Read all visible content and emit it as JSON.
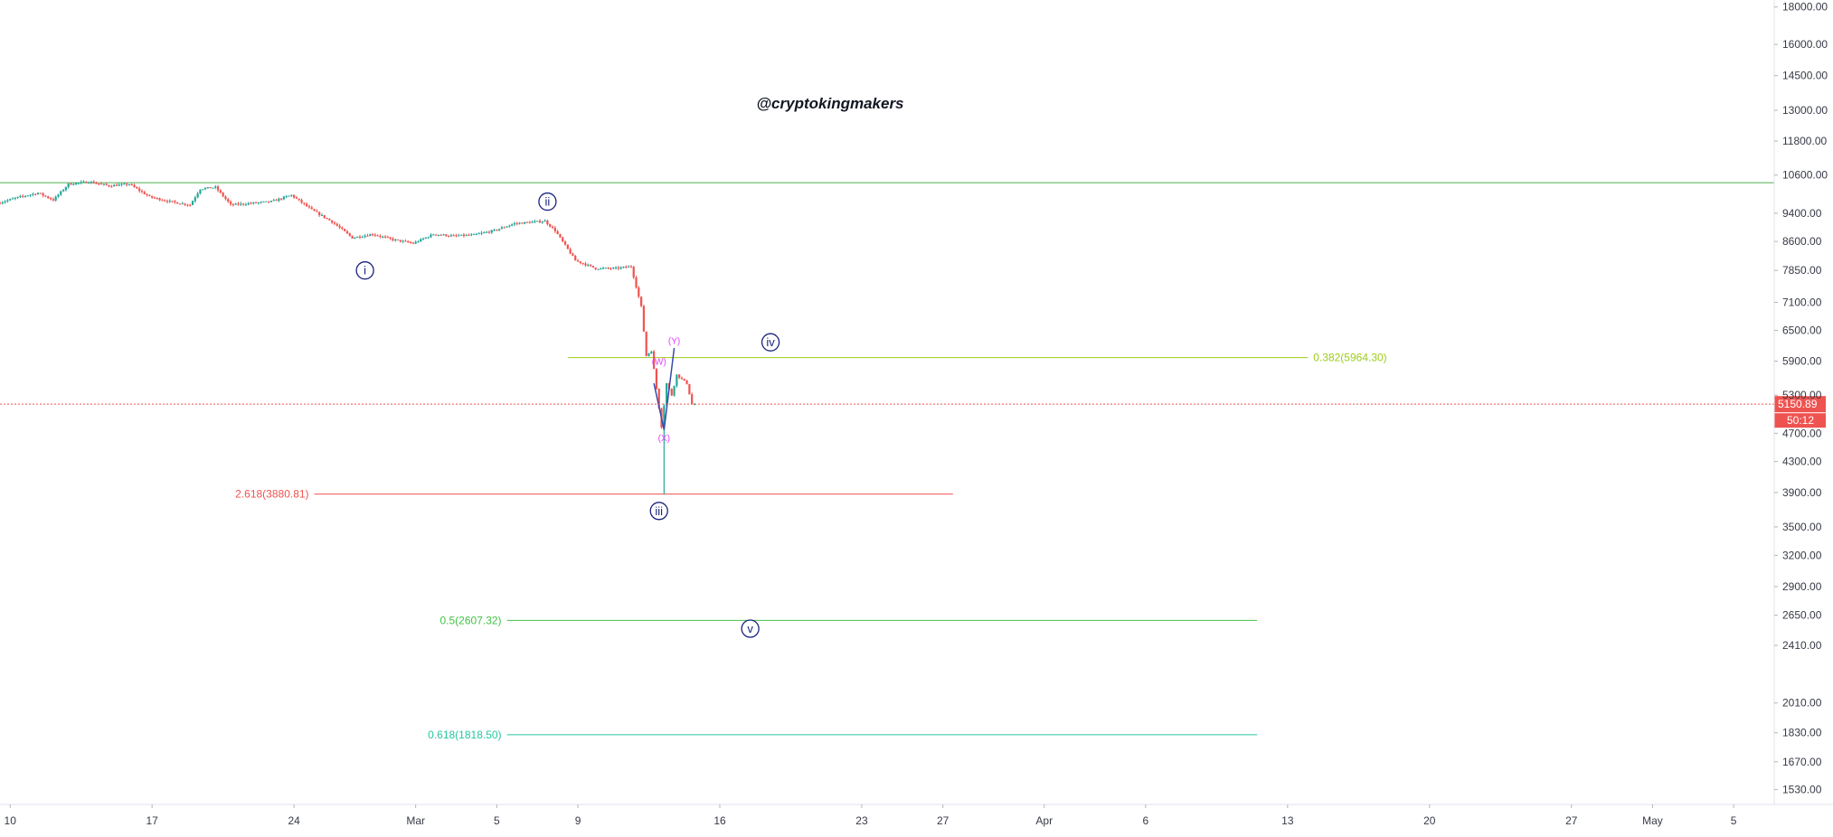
{
  "chart_data": {
    "type": "candlestick",
    "watermark": "@cryptokingmakers",
    "y_axis": {
      "scale": "log",
      "range": [
        1460,
        18400
      ],
      "ticks": [
        "18000.00",
        "16000.00",
        "14500.00",
        "13000.00",
        "11800.00",
        "10600.00",
        "9400.00",
        "8600.00",
        "7850.00",
        "7100.00",
        "6500.00",
        "5900.00",
        "5300.00",
        "4700.00",
        "4300.00",
        "3900.00",
        "3500.00",
        "3200.00",
        "2900.00",
        "2650.00",
        "2410.00",
        "2010.00",
        "1830.00",
        "1670.00",
        "1530.00"
      ]
    },
    "x_axis": {
      "range": [
        "2020-02-09T12:00",
        "2020-05-07T00:00"
      ],
      "ticks": [
        {
          "date": "2020-02-10",
          "label": "10"
        },
        {
          "date": "2020-02-17",
          "label": "17"
        },
        {
          "date": "2020-02-24",
          "label": "24"
        },
        {
          "date": "2020-03-01",
          "label": "Mar"
        },
        {
          "date": "2020-03-05",
          "label": "5"
        },
        {
          "date": "2020-03-09",
          "label": "9"
        },
        {
          "date": "2020-03-16",
          "label": "16"
        },
        {
          "date": "2020-03-23",
          "label": "23"
        },
        {
          "date": "2020-03-27",
          "label": "27"
        },
        {
          "date": "2020-04-01",
          "label": "Apr"
        },
        {
          "date": "2020-04-06",
          "label": "6"
        },
        {
          "date": "2020-04-13",
          "label": "13"
        },
        {
          "date": "2020-04-20",
          "label": "20"
        },
        {
          "date": "2020-04-27",
          "label": "27"
        },
        {
          "date": "2020-05-01",
          "label": "May"
        },
        {
          "date": "2020-05-05",
          "label": "5"
        }
      ]
    },
    "colors": {
      "up": "#26a69a",
      "down": "#ef5350",
      "wave": "#1a237e",
      "corrective": "#e040fb",
      "grid": "none"
    },
    "price_path": [
      [
        "2020-02-09T12:00",
        9700
      ],
      [
        "2020-02-10T12:00",
        9880
      ],
      [
        "2020-02-11T12:00",
        10020
      ],
      [
        "2020-02-12T06:00",
        9800
      ],
      [
        "2020-02-13T00:00",
        10300
      ],
      [
        "2020-02-14T00:00",
        10380
      ],
      [
        "2020-02-15T00:00",
        10250
      ],
      [
        "2020-02-16T00:00",
        10300
      ],
      [
        "2020-02-17T00:00",
        9900
      ],
      [
        "2020-02-18T00:00",
        9750
      ],
      [
        "2020-02-19T00:00",
        9650
      ],
      [
        "2020-02-19T12:00",
        10150
      ],
      [
        "2020-02-20T06:00",
        10200
      ],
      [
        "2020-02-21T00:00",
        9650
      ],
      [
        "2020-02-22T00:00",
        9700
      ],
      [
        "2020-02-23T00:00",
        9750
      ],
      [
        "2020-02-24T00:00",
        9950
      ],
      [
        "2020-02-25T00:00",
        9500
      ],
      [
        "2020-02-26T00:00",
        9150
      ],
      [
        "2020-02-27T00:00",
        8700
      ],
      [
        "2020-02-28T00:00",
        8800
      ],
      [
        "2020-02-29T00:00",
        8650
      ],
      [
        "2020-03-01T00:00",
        8550
      ],
      [
        "2020-03-02T00:00",
        8800
      ],
      [
        "2020-03-03T00:00",
        8750
      ],
      [
        "2020-03-04T00:00",
        8780
      ],
      [
        "2020-03-05T00:00",
        8900
      ],
      [
        "2020-03-06T00:00",
        9100
      ],
      [
        "2020-03-07T12:00",
        9170
      ],
      [
        "2020-03-08T00:00",
        8900
      ],
      [
        "2020-03-09T00:00",
        8100
      ],
      [
        "2020-03-10T00:00",
        7900
      ],
      [
        "2020-03-11T00:00",
        7900
      ],
      [
        "2020-03-11T18:00",
        7950
      ],
      [
        "2020-03-12T06:00",
        7000
      ],
      [
        "2020-03-12T12:00",
        6000
      ],
      [
        "2020-03-12T18:00",
        6100
      ],
      [
        "2020-03-13T06:00",
        4800
      ],
      [
        "2020-03-13T12:00",
        5500
      ],
      [
        "2020-03-13T18:00",
        5300
      ],
      [
        "2020-03-14T00:00",
        5650
      ],
      [
        "2020-03-14T12:00",
        5500
      ],
      [
        "2020-03-14T18:00",
        5151
      ]
    ],
    "current_price": {
      "value": 5150.89,
      "label": "5150.89",
      "countdown": "50:12"
    },
    "annotations": [
      {
        "kind": "level",
        "y": 10350,
        "x_start": "2020-02-09T12:00",
        "x_end": "2020-05-07T00:00",
        "color": "#4caf50",
        "label": ""
      },
      {
        "kind": "level",
        "y": 5964.3,
        "x_start": "2020-03-08T12:00",
        "x_end": "2020-04-14T00:00",
        "color": "#9ccc1a",
        "label": "0.382(5964.30)",
        "label_side": "right"
      },
      {
        "kind": "level",
        "y": 3880.81,
        "x_start": "2020-02-25T00:00",
        "x_end": "2020-03-27T12:00",
        "color": "#ef5350",
        "label": "2.618(3880.81)",
        "label_side": "left"
      },
      {
        "kind": "level",
        "y": 2607.32,
        "x_start": "2020-03-05T12:00",
        "x_end": "2020-04-11T12:00",
        "color": "#43c247",
        "label": "0.5(2607.32)",
        "label_side": "left"
      },
      {
        "kind": "level",
        "y": 1818.5,
        "x_start": "2020-03-05T12:00",
        "x_end": "2020-04-11T12:00",
        "color": "#26c6a0",
        "label": "0.618(1818.50)",
        "label_side": "left"
      }
    ],
    "wave_labels": [
      {
        "label": "i",
        "x": "2020-02-27T12:00",
        "y": 7850
      },
      {
        "label": "ii",
        "x": "2020-03-07T12:00",
        "y": 9750
      },
      {
        "label": "iii",
        "x": "2020-03-13T00:00",
        "y": 3680
      },
      {
        "label": "iv",
        "x": "2020-03-18T12:00",
        "y": 6260
      },
      {
        "label": "v",
        "x": "2020-03-17T12:00",
        "y": 2540
      }
    ],
    "corrective_labels": [
      {
        "label": "(W)",
        "x": "2020-03-13T00:00",
        "y": 5900
      },
      {
        "label": "(X)",
        "x": "2020-03-13T06:00",
        "y": 4640
      },
      {
        "label": "(Y)",
        "x": "2020-03-13T18:00",
        "y": 6300
      }
    ],
    "corrective_path": [
      [
        "2020-03-12T18:00",
        5500
      ],
      [
        "2020-03-13T06:00",
        4750
      ],
      [
        "2020-03-13T18:00",
        6150
      ]
    ],
    "wick_low": {
      "x": "2020-03-13T06:00",
      "low": 3880,
      "high": 4800
    }
  }
}
